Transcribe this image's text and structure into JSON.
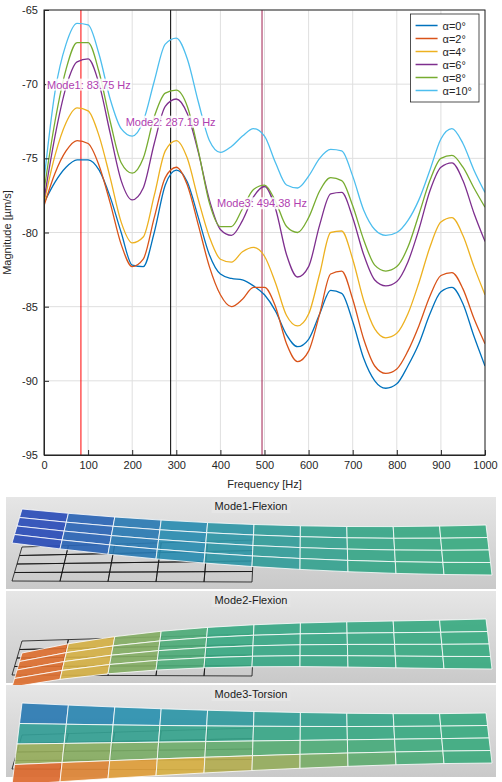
{
  "chart_data": {
    "type": "line",
    "x_label": "Frequency [Hz]",
    "y_label": "Magnitude [µm/s]",
    "xlim": [
      0,
      1000
    ],
    "ylim": [
      -95,
      -65
    ],
    "xticks": [
      0,
      100,
      200,
      300,
      400,
      500,
      600,
      700,
      800,
      900,
      1000
    ],
    "yticks": [
      -95,
      -90,
      -85,
      -80,
      -75,
      -70,
      -65
    ],
    "grid": true,
    "legend": "top-right",
    "x": [
      0,
      25,
      50,
      75,
      100,
      125,
      150,
      175,
      200,
      225,
      250,
      275,
      300,
      325,
      350,
      375,
      400,
      425,
      450,
      475,
      500,
      525,
      550,
      575,
      600,
      625,
      650,
      675,
      700,
      725,
      750,
      775,
      800,
      825,
      850,
      875,
      900,
      925,
      950,
      975,
      1000
    ],
    "series": [
      {
        "name": "α=0°",
        "color": "#0072BD",
        "values": [
          -78.0,
          -76.6,
          -75.6,
          -75.1,
          -75.1,
          -75.8,
          -77.6,
          -80.0,
          -82.2,
          -82.3,
          -80.0,
          -76.8,
          -75.8,
          -76.6,
          -79.0,
          -81.5,
          -82.8,
          -83.1,
          -83.2,
          -83.6,
          -84.2,
          -85.3,
          -86.9,
          -87.7,
          -87.2,
          -85.5,
          -83.9,
          -84.1,
          -86.0,
          -88.5,
          -90.0,
          -90.5,
          -90.2,
          -89.0,
          -87.5,
          -85.5,
          -84.0,
          -83.7,
          -84.8,
          -87.0,
          -89.0
        ]
      },
      {
        "name": "α=2°",
        "color": "#D95319",
        "values": [
          -78.2,
          -76.0,
          -74.5,
          -73.8,
          -74.0,
          -75.5,
          -78.0,
          -80.8,
          -82.3,
          -81.8,
          -79.0,
          -76.3,
          -75.6,
          -76.8,
          -79.5,
          -82.3,
          -84.2,
          -85.0,
          -84.5,
          -83.7,
          -83.7,
          -85.0,
          -87.5,
          -88.7,
          -88.0,
          -85.5,
          -82.8,
          -82.6,
          -84.5,
          -87.2,
          -89.0,
          -89.5,
          -89.2,
          -88.0,
          -86.3,
          -84.3,
          -82.9,
          -82.7,
          -83.8,
          -85.8,
          -87.5
        ]
      },
      {
        "name": "α=4°",
        "color": "#EDB120",
        "values": [
          -78.0,
          -74.8,
          -72.6,
          -71.6,
          -71.8,
          -73.5,
          -76.3,
          -79.3,
          -80.7,
          -80.3,
          -77.5,
          -74.5,
          -73.8,
          -75.0,
          -77.8,
          -80.3,
          -81.8,
          -82.0,
          -81.3,
          -81.0,
          -81.6,
          -83.4,
          -85.6,
          -86.3,
          -85.5,
          -82.8,
          -80.0,
          -79.9,
          -81.8,
          -84.6,
          -86.5,
          -87.1,
          -86.8,
          -85.5,
          -83.4,
          -81.0,
          -79.3,
          -79.0,
          -80.2,
          -82.3,
          -84.2
        ]
      },
      {
        "name": "α=6°",
        "color": "#7E2F8E",
        "values": [
          -77.8,
          -73.5,
          -70.2,
          -68.5,
          -68.3,
          -70.0,
          -73.3,
          -76.5,
          -77.8,
          -77.0,
          -74.0,
          -71.5,
          -71.0,
          -72.0,
          -74.6,
          -77.8,
          -79.8,
          -80.2,
          -79.2,
          -77.6,
          -76.9,
          -78.4,
          -81.5,
          -83.0,
          -82.3,
          -79.5,
          -77.4,
          -77.3,
          -79.0,
          -81.5,
          -83.2,
          -83.6,
          -83.3,
          -82.0,
          -79.8,
          -77.2,
          -75.6,
          -75.3,
          -76.5,
          -78.7,
          -80.6
        ]
      },
      {
        "name": "α=8°",
        "color": "#77AC30",
        "values": [
          -77.2,
          -72.5,
          -69.0,
          -67.2,
          -67.2,
          -69.2,
          -72.5,
          -75.3,
          -76.0,
          -75.0,
          -72.2,
          -70.6,
          -70.4,
          -71.5,
          -74.5,
          -78.0,
          -79.6,
          -79.6,
          -78.4,
          -77.1,
          -76.8,
          -77.9,
          -79.6,
          -80.0,
          -79.0,
          -77.2,
          -76.3,
          -76.5,
          -78.2,
          -80.5,
          -82.2,
          -82.6,
          -82.3,
          -81.0,
          -78.8,
          -76.5,
          -75.0,
          -74.8,
          -75.6,
          -77.0,
          -78.3
        ]
      },
      {
        "name": "α=10°",
        "color": "#4DBEEE",
        "values": [
          -76.5,
          -70.5,
          -67.3,
          -65.9,
          -66.0,
          -68.0,
          -71.0,
          -73.0,
          -73.5,
          -72.5,
          -69.8,
          -67.3,
          -66.9,
          -68.3,
          -71.2,
          -73.8,
          -74.6,
          -74.2,
          -73.5,
          -73.0,
          -73.5,
          -75.3,
          -76.8,
          -77.0,
          -76.2,
          -75.0,
          -74.4,
          -74.5,
          -76.2,
          -78.5,
          -79.8,
          -80.2,
          -80.0,
          -79.2,
          -77.8,
          -75.8,
          -73.7,
          -73.0,
          -74.0,
          -75.8,
          -77.3
        ]
      }
    ],
    "annotations": [
      {
        "text": "Mode1: 83.75 Hz",
        "x": 83.75,
        "y": -70.3,
        "color": "#ff0000"
      },
      {
        "text": "Mode2: 287.19 Hz",
        "x": 287.19,
        "y": -72.8,
        "color": "#000000"
      },
      {
        "text": "Mode3: 494.38 Hz",
        "x": 494.38,
        "y": -78.3,
        "color": "#a0204f"
      }
    ]
  },
  "mode_shapes": [
    {
      "title": "Mode1-Flexion"
    },
    {
      "title": "Mode2-Flexion"
    },
    {
      "title": "Mode3-Torsion"
    }
  ]
}
